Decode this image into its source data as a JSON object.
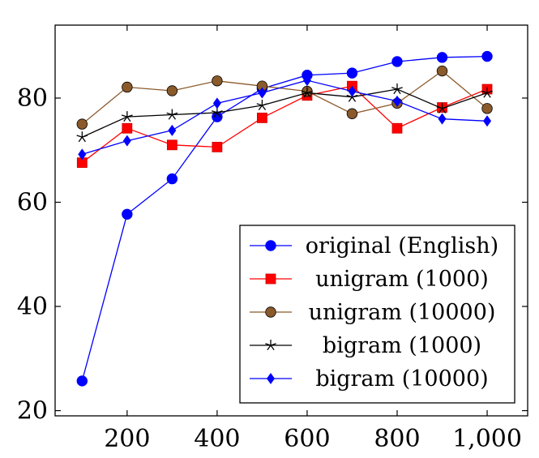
{
  "chart_data": {
    "type": "line",
    "title": "",
    "xlabel": "",
    "ylabel": "",
    "xlim": [
      40,
      1090
    ],
    "ylim": [
      19,
      94
    ],
    "x": [
      100,
      200,
      300,
      400,
      500,
      600,
      700,
      800,
      900,
      1000
    ],
    "x_ticks": [
      200,
      400,
      600,
      800,
      1000
    ],
    "x_tick_labels": [
      "200",
      "400",
      "600",
      "800",
      "1,000"
    ],
    "y_ticks": [
      20,
      40,
      60,
      80
    ],
    "y_tick_labels": [
      "20",
      "40",
      "60",
      "80"
    ],
    "grid": false,
    "legend_position": "bottom-right",
    "series": [
      {
        "name": "original (English)",
        "color": "#0000ff",
        "marker": "circle",
        "values": [
          25.7,
          57.7,
          64.5,
          76.4,
          81.8,
          84.4,
          84.8,
          87.0,
          87.8,
          88.0
        ]
      },
      {
        "name": "unigram (1000)",
        "color": "#ff0000",
        "marker": "square",
        "values": [
          67.6,
          74.2,
          71.0,
          70.6,
          76.2,
          80.5,
          82.3,
          74.2,
          78.2,
          81.7
        ]
      },
      {
        "name": "unigram (10000)",
        "color": "#8b5a2b",
        "marker": "circle",
        "values": [
          75.0,
          82.1,
          81.4,
          83.3,
          82.3,
          81.3,
          77.0,
          79.0,
          85.2,
          78.0
        ]
      },
      {
        "name": "bigram (1000)",
        "color": "#000000",
        "marker": "star",
        "values": [
          72.5,
          76.4,
          76.8,
          77.2,
          78.6,
          81.0,
          80.2,
          81.7,
          78.0,
          81.0
        ]
      },
      {
        "name": "bigram (10000)",
        "color": "#0000ff",
        "marker": "diamond",
        "values": [
          69.2,
          71.8,
          73.8,
          79.0,
          81.0,
          83.4,
          81.3,
          79.4,
          76.0,
          75.6
        ]
      }
    ]
  }
}
